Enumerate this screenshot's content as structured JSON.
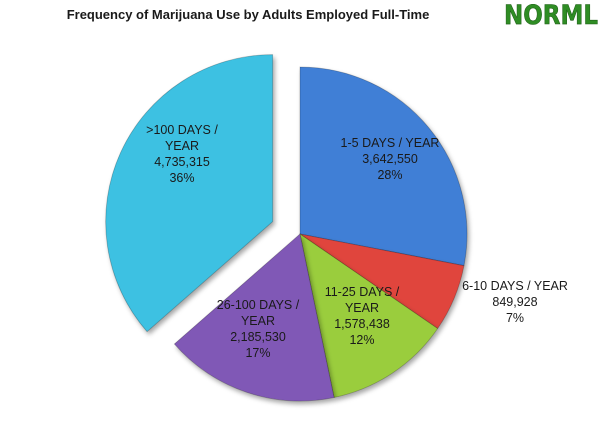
{
  "chart_data": {
    "type": "pie",
    "title": "Frequency of Marijuana Use by Adults Employed Full-Time",
    "start_angle_deg": 0,
    "direction": "clockwise",
    "slices": [
      {
        "label_lines": [
          "1-5 DAYS / YEAR",
          "3,642,550",
          "28%"
        ],
        "value": 3642550,
        "percent": 28,
        "color": "#3f7fd6",
        "exploded": false
      },
      {
        "label_lines": [
          "6-10 DAYS / YEAR",
          "849,928",
          "7%"
        ],
        "value": 849928,
        "percent": 7,
        "color": "#e0443e",
        "exploded": false
      },
      {
        "label_lines": [
          "11-25 DAYS /",
          "YEAR",
          "1,578,438",
          "12%"
        ],
        "value": 1578438,
        "percent": 12,
        "color": "#9acd3c",
        "exploded": false
      },
      {
        "label_lines": [
          "26-100 DAYS /",
          "YEAR",
          "2,185,530",
          "17%"
        ],
        "value": 2185530,
        "percent": 17,
        "color": "#8058b6",
        "exploded": false
      },
      {
        "label_lines": [
          ">100 DAYS /",
          "YEAR",
          "4,735,315",
          "36%"
        ],
        "value": 4735315,
        "percent": 36,
        "color": "#3cc1e2",
        "exploded": true
      }
    ]
  },
  "logo": {
    "text": "NORML"
  }
}
